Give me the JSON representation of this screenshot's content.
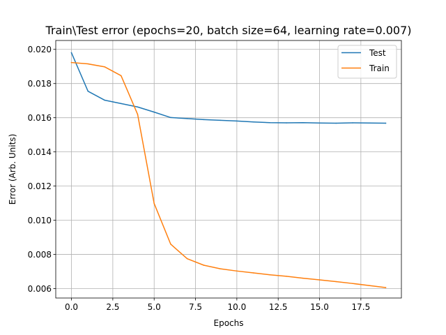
{
  "chart_data": {
    "type": "line",
    "title": "Train\\Test error (epochs=20, batch size=64, learning rate=0.007)",
    "xlabel": "Epochs",
    "ylabel": "Error (Arb. Units)",
    "xlim": [
      -0.95,
      19.95
    ],
    "ylim": [
      0.00545,
      0.02052
    ],
    "x_ticks": [
      0.0,
      2.5,
      5.0,
      7.5,
      10.0,
      12.5,
      15.0,
      17.5
    ],
    "x_tick_labels": [
      "0.0",
      "2.5",
      "5.0",
      "7.5",
      "10.0",
      "12.5",
      "15.0",
      "17.5"
    ],
    "y_ticks": [
      0.006,
      0.008,
      0.01,
      0.012,
      0.014,
      0.016,
      0.018,
      0.02
    ],
    "y_tick_labels": [
      "0.006",
      "0.008",
      "0.010",
      "0.012",
      "0.014",
      "0.016",
      "0.018",
      "0.020"
    ],
    "grid": true,
    "legend_position": "top-right",
    "x": [
      0,
      1,
      2,
      3,
      4,
      5,
      6,
      7,
      8,
      9,
      10,
      11,
      12,
      13,
      14,
      15,
      16,
      17,
      18,
      19
    ],
    "series": [
      {
        "name": "Test",
        "color": "#1f77b4",
        "values": [
          0.0198,
          0.01755,
          0.01703,
          0.01683,
          0.01663,
          0.01633,
          0.01601,
          0.01595,
          0.01589,
          0.01585,
          0.01581,
          0.01575,
          0.01571,
          0.0157,
          0.01571,
          0.01569,
          0.01568,
          0.0157,
          0.01569,
          0.01568
        ]
      },
      {
        "name": "Train",
        "color": "#ff7f0e",
        "values": [
          0.01923,
          0.01915,
          0.01898,
          0.01846,
          0.0162,
          0.01098,
          0.0086,
          0.00775,
          0.00737,
          0.00716,
          0.00703,
          0.00692,
          0.00681,
          0.00672,
          0.00661,
          0.00651,
          0.00641,
          0.0063,
          0.00618,
          0.00606
        ]
      }
    ]
  }
}
